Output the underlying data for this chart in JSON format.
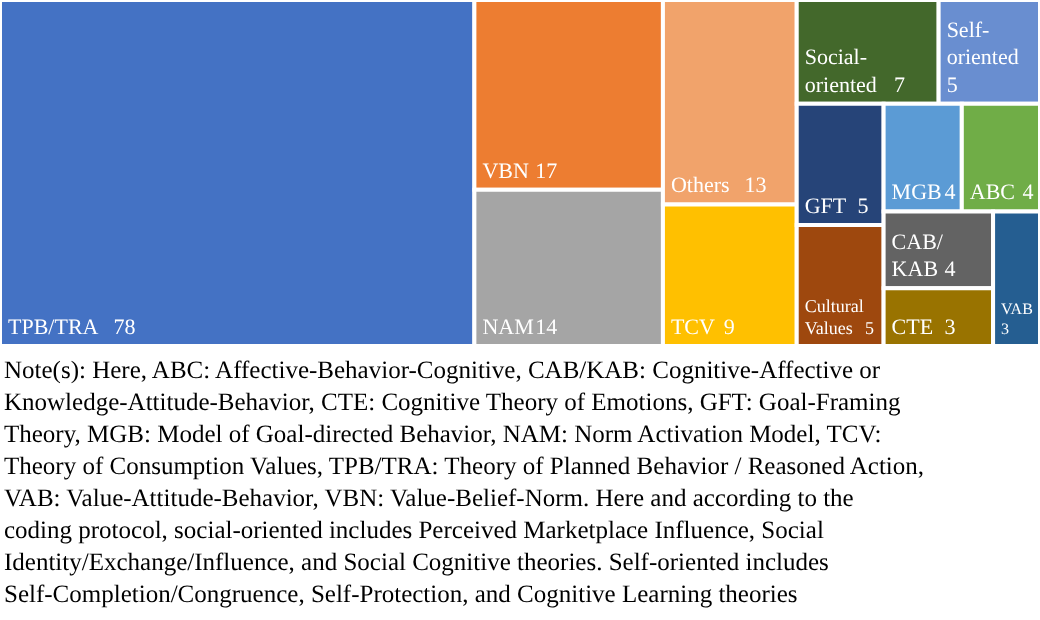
{
  "chart_data": {
    "type": "other",
    "categories": [
      "TPB/TRA",
      "VBN",
      "NAM",
      "Others",
      "TCV",
      "Social-oriented",
      "Self-oriented",
      "GFT",
      "Cultural Values",
      "MGB",
      "ABC",
      "CAB/KAB",
      "CTE",
      "VAB"
    ],
    "values": [
      78,
      17,
      14,
      13,
      9,
      7,
      5,
      5,
      5,
      4,
      4,
      4,
      3,
      3
    ],
    "colors": [
      "#4472c4",
      "#ed7d31",
      "#a5a5a5",
      "#f1a36b",
      "#ffc000",
      "#43682b",
      "#698ed0",
      "#264478",
      "#9e480e",
      "#5b9bd5",
      "#70ad47",
      "#636363",
      "#997300",
      "#255e91"
    ],
    "data_labels": true,
    "annotations": [
      "Note(s): Here, ABC: Affective-Behavior-Cognitive, CAB/KAB: Cognitive-Affective or Knowledge-Attitude-Behavior, CTE: Cognitive Theory of Emotions, GFT: Goal-Framing Theory, MGB: Model of Goal-directed Behavior, NAM: Norm Activation Model, TCV: Theory of Consumption Values, TPB/TRA: Theory of Planned Behavior / Reasoned Action, VAB: Value-Attitude-Behavior, VBN: Value-Belief-Norm. Here and according to the coding protocol, social-oriented includes Perceived Marketplace Influence, Social Identity/Exchange/Influence, and Social Cognitive theories. Self-oriented includes Self-Completion/Congruence, Self-Protection, and Cognitive Learning theories"
    ]
  }
}
